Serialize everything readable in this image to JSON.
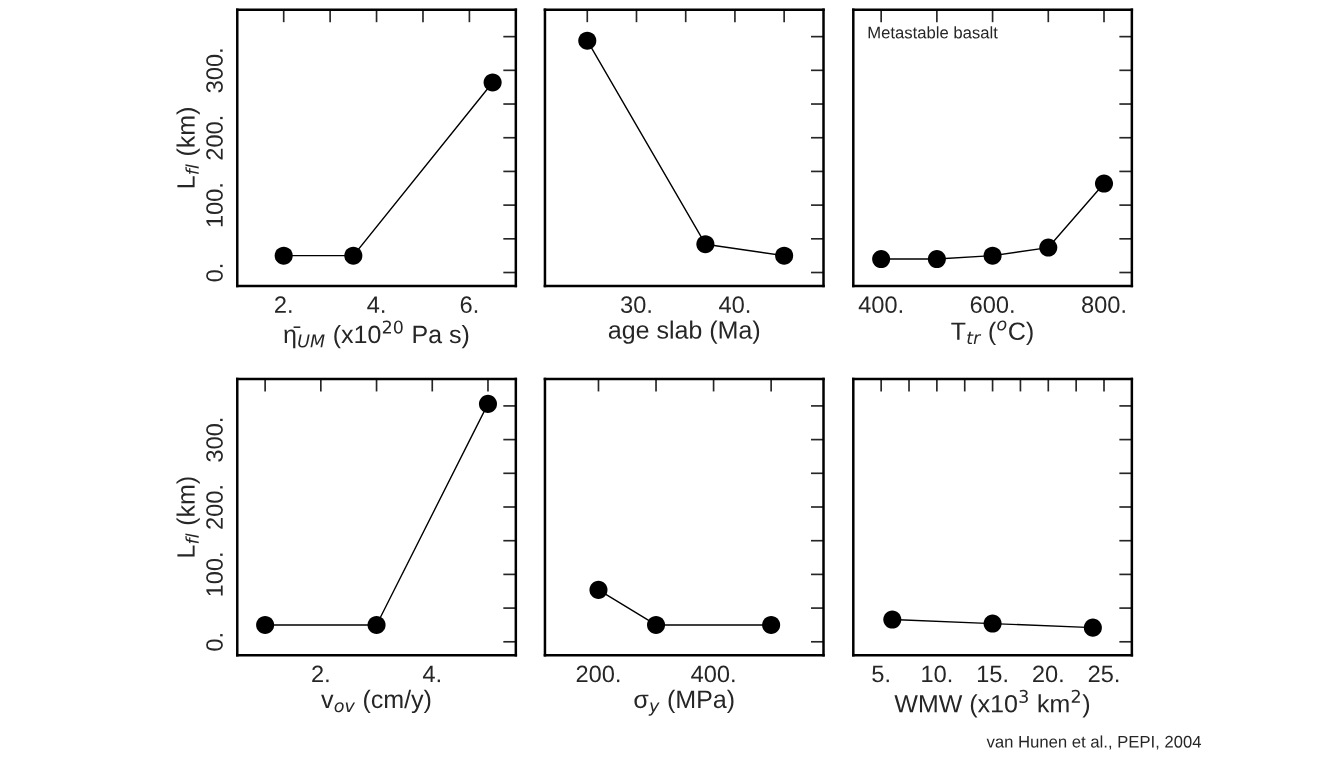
{
  "chart_data": [
    {
      "type": "line",
      "xlabel": "η̄$_{UM}$ (x10$^{20}$ Pa s)",
      "ylabel": "L$_{fl}$ (km)",
      "x": [
        2,
        3.5,
        6.5
      ],
      "series": [
        {
          "color": "#000000",
          "values": [
            25,
            25,
            282
          ]
        }
      ],
      "marker": "circle",
      "line_style": "solid",
      "grid": false,
      "legend": false,
      "xlim": [
        1,
        7
      ],
      "xticks": [
        {
          "value": 2,
          "label": "2."
        },
        {
          "value": 3,
          "label": null
        },
        {
          "value": 4,
          "label": "4."
        },
        {
          "value": 5,
          "label": null
        },
        {
          "value": 6,
          "label": "6."
        }
      ],
      "ylim": [
        -20,
        390
      ],
      "yticks": [
        {
          "value": 0,
          "label": "0."
        },
        {
          "value": 50,
          "label": null
        },
        {
          "value": 100,
          "label": "100."
        },
        {
          "value": 150,
          "label": null
        },
        {
          "value": 200,
          "label": "200."
        },
        {
          "value": 250,
          "label": null
        },
        {
          "value": 300,
          "label": "300."
        },
        {
          "value": 350,
          "label": null
        }
      ]
    },
    {
      "type": "line",
      "xlabel": "age slab (Ma)",
      "x": [
        25,
        37,
        45
      ],
      "series": [
        {
          "color": "#000000",
          "values": [
            344,
            42,
            25
          ]
        }
      ],
      "marker": "circle",
      "line_style": "solid",
      "grid": false,
      "legend": false,
      "tick_labels": "x",
      "xlim": [
        20.7,
        49
      ],
      "xticks": [
        {
          "value": 25,
          "label": null
        },
        {
          "value": 30,
          "label": "30."
        },
        {
          "value": 35,
          "label": null
        },
        {
          "value": 40,
          "label": "40."
        },
        {
          "value": 45,
          "label": null
        }
      ],
      "ylim": [
        -20,
        390
      ],
      "yticks": [
        {
          "value": 0,
          "label": null
        },
        {
          "value": 50,
          "label": null
        },
        {
          "value": 100,
          "label": null
        },
        {
          "value": 150,
          "label": null
        },
        {
          "value": 200,
          "label": null
        },
        {
          "value": 250,
          "label": null
        },
        {
          "value": 300,
          "label": null
        },
        {
          "value": 350,
          "label": null
        }
      ]
    },
    {
      "type": "line",
      "xlabel": "T$_{tr}$ ($^{o}$C)",
      "x": [
        400,
        500,
        600,
        700,
        800
      ],
      "series": [
        {
          "color": "#000000",
          "values": [
            20,
            20,
            25,
            37,
            132
          ]
        }
      ],
      "marker": "circle",
      "line_style": "solid",
      "grid": false,
      "legend": false,
      "tick_labels": "x",
      "annotations": [
        "Metastable basalt"
      ],
      "xlim": [
        350,
        850
      ],
      "xticks": [
        {
          "value": 400,
          "label": "400."
        },
        {
          "value": 500,
          "label": null
        },
        {
          "value": 600,
          "label": "600."
        },
        {
          "value": 700,
          "label": null
        },
        {
          "value": 800,
          "label": "800."
        }
      ],
      "ylim": [
        -20,
        390
      ],
      "yticks": [
        {
          "value": 0,
          "label": null
        },
        {
          "value": 50,
          "label": null
        },
        {
          "value": 100,
          "label": null
        },
        {
          "value": 150,
          "label": null
        },
        {
          "value": 200,
          "label": null
        },
        {
          "value": 250,
          "label": null
        },
        {
          "value": 300,
          "label": null
        },
        {
          "value": 350,
          "label": null
        }
      ]
    },
    {
      "type": "line",
      "xlabel": "v$_{ov}$ (cm/y)",
      "ylabel": "L$_{fl}$ (km)",
      "x": [
        1,
        3,
        5
      ],
      "series": [
        {
          "color": "#000000",
          "values": [
            25,
            25,
            353
          ]
        }
      ],
      "marker": "circle",
      "line_style": "solid",
      "grid": false,
      "legend": false,
      "xlim": [
        0.5,
        5.5
      ],
      "xticks": [
        {
          "value": 1,
          "label": null
        },
        {
          "value": 2,
          "label": "2."
        },
        {
          "value": 3,
          "label": null
        },
        {
          "value": 4,
          "label": "4."
        },
        {
          "value": 5,
          "label": null
        }
      ],
      "ylim": [
        -20,
        390
      ],
      "yticks": [
        {
          "value": 0,
          "label": "0."
        },
        {
          "value": 50,
          "label": null
        },
        {
          "value": 100,
          "label": "100."
        },
        {
          "value": 150,
          "label": null
        },
        {
          "value": 200,
          "label": "200."
        },
        {
          "value": 250,
          "label": null
        },
        {
          "value": 300,
          "label": "300."
        },
        {
          "value": 350,
          "label": null
        }
      ]
    },
    {
      "type": "line",
      "xlabel": "σ$_{y}$ (MPa)",
      "x": [
        200,
        300,
        500
      ],
      "series": [
        {
          "color": "#000000",
          "values": [
            77,
            25,
            25
          ]
        }
      ],
      "marker": "circle",
      "line_style": "solid",
      "grid": false,
      "legend": false,
      "tick_labels": "x",
      "xlim": [
        107,
        591
      ],
      "xticks": [
        {
          "value": 200,
          "label": "200."
        },
        {
          "value": 300,
          "label": null
        },
        {
          "value": 400,
          "label": "400."
        },
        {
          "value": 500,
          "label": null
        }
      ],
      "ylim": [
        -20,
        390
      ],
      "yticks": [
        {
          "value": 0,
          "label": null
        },
        {
          "value": 50,
          "label": null
        },
        {
          "value": 100,
          "label": null
        },
        {
          "value": 150,
          "label": null
        },
        {
          "value": 200,
          "label": null
        },
        {
          "value": 250,
          "label": null
        },
        {
          "value": 300,
          "label": null
        },
        {
          "value": 350,
          "label": null
        }
      ]
    },
    {
      "type": "line",
      "xlabel": "WMW (x10$^{3}$ km$^{2}$)",
      "x": [
        6,
        15,
        24
      ],
      "series": [
        {
          "color": "#000000",
          "values": [
            33,
            27,
            21
          ]
        }
      ],
      "marker": "circle",
      "line_style": "solid",
      "grid": false,
      "legend": false,
      "tick_labels": "x",
      "annotations": [
        "van Hunen et al., PEPI, 2004"
      ],
      "xlim": [
        2.5,
        27.5
      ],
      "xticks": [
        {
          "value": 5,
          "label": "5."
        },
        {
          "value": 7.5,
          "label": null
        },
        {
          "value": 10,
          "label": "10."
        },
        {
          "value": 12.5,
          "label": null
        },
        {
          "value": 15,
          "label": "15."
        },
        {
          "value": 17.5,
          "label": null
        },
        {
          "value": 20,
          "label": "20."
        },
        {
          "value": 22.5,
          "label": null
        },
        {
          "value": 25,
          "label": "25."
        }
      ],
      "ylim": [
        -20,
        390
      ],
      "yticks": [
        {
          "value": 0,
          "label": null
        },
        {
          "value": 50,
          "label": null
        },
        {
          "value": 100,
          "label": null
        },
        {
          "value": 150,
          "label": null
        },
        {
          "value": 200,
          "label": null
        },
        {
          "value": 250,
          "label": null
        },
        {
          "value": 300,
          "label": null
        },
        {
          "value": 350,
          "label": null
        }
      ]
    }
  ]
}
